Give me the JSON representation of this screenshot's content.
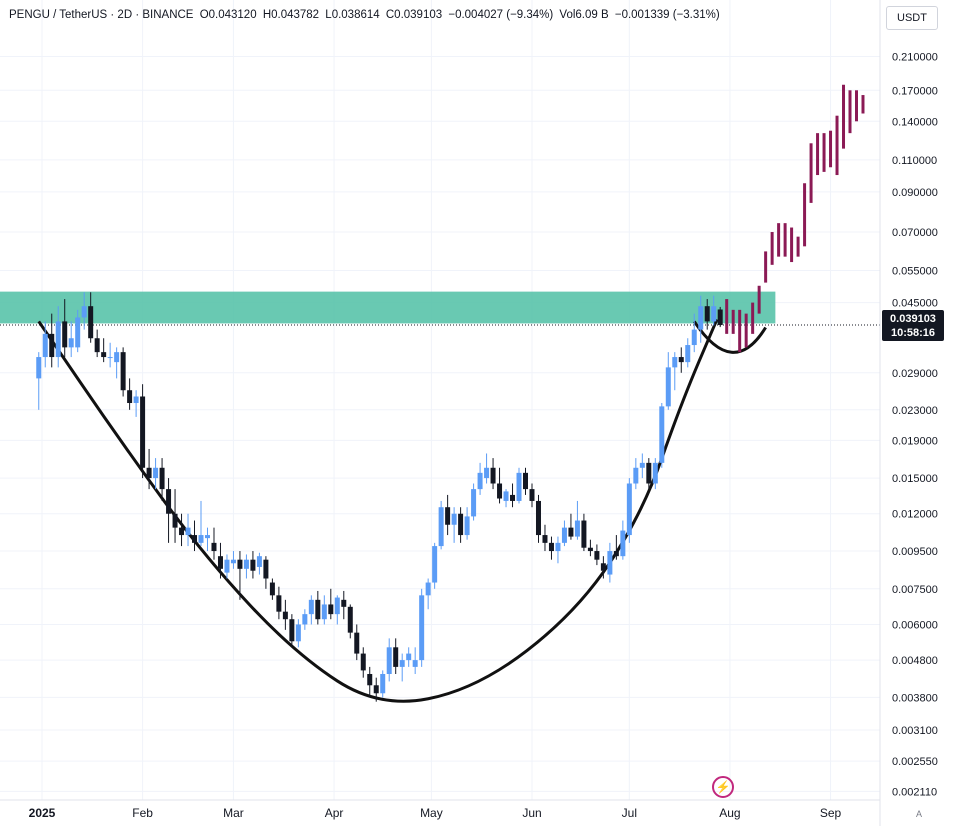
{
  "header": {
    "symbol": "PENGU / TetherUS · 2D · BINANCE",
    "open": "O0.043120",
    "high": "H0.043782",
    "low": "L0.038614",
    "close": "C0.039103",
    "change": "−0.004027 (−9.34%)",
    "volume": "Vol6.09 B",
    "vol_change": "−0.001339 (−3.31%)"
  },
  "currency_label": "USDT",
  "price_tag": {
    "price": "0.039103",
    "countdown": "10:58:16"
  },
  "auto_label": "A",
  "colors": {
    "up": "#5b9cf6",
    "down": "#131722",
    "projection": "#8b1a55",
    "zone": "#4fbfa5",
    "curve": "#111111",
    "grid": "#f0f3fa",
    "axis_text": "#131722"
  },
  "chart_data": {
    "type": "candlestick",
    "scale": "log",
    "ylim": [
      0.00205,
      0.23
    ],
    "y_ticks": [
      "0.210000",
      "0.170000",
      "0.140000",
      "0.110000",
      "0.090000",
      "0.070000",
      "0.055000",
      "0.045000",
      "0.029000",
      "0.023000",
      "0.019000",
      "0.015000",
      "0.012000",
      "0.009500",
      "0.007500",
      "0.006000",
      "0.004800",
      "0.003800",
      "0.003100",
      "0.002550",
      "0.002110"
    ],
    "x_ticks": [
      "2025",
      "Feb",
      "Mar",
      "Apr",
      "May",
      "Jun",
      "Jul",
      "Aug",
      "Sep"
    ],
    "x_tick_dates": [
      "2025-01-01",
      "2025-02-01",
      "2025-03-01",
      "2025-04-01",
      "2025-05-01",
      "2025-06-01",
      "2025-07-01",
      "2025-08-01",
      "2025-09-01"
    ],
    "zone": {
      "low": 0.0395,
      "high": 0.0482,
      "start": "2024-12-31",
      "end": "2025-08-15"
    },
    "last_price": 0.039103,
    "candles": [
      [
        "2024-12-31",
        0.028,
        0.033,
        0.023,
        0.032
      ],
      [
        "2025-01-02",
        0.032,
        0.04,
        0.03,
        0.037
      ],
      [
        "2025-01-04",
        0.037,
        0.042,
        0.03,
        0.032
      ],
      [
        "2025-01-06",
        0.032,
        0.044,
        0.03,
        0.04
      ],
      [
        "2025-01-08",
        0.04,
        0.046,
        0.032,
        0.034
      ],
      [
        "2025-01-10",
        0.034,
        0.04,
        0.032,
        0.036
      ],
      [
        "2025-01-12",
        0.034,
        0.043,
        0.033,
        0.041
      ],
      [
        "2025-01-14",
        0.041,
        0.048,
        0.038,
        0.044
      ],
      [
        "2025-01-16",
        0.044,
        0.048,
        0.035,
        0.036
      ],
      [
        "2025-01-18",
        0.036,
        0.038,
        0.032,
        0.033
      ],
      [
        "2025-01-20",
        0.033,
        0.036,
        0.031,
        0.032
      ],
      [
        "2025-01-22",
        0.032,
        0.035,
        0.03,
        0.032
      ],
      [
        "2025-01-24",
        0.031,
        0.034,
        0.028,
        0.033
      ],
      [
        "2025-01-26",
        0.033,
        0.034,
        0.025,
        0.026
      ],
      [
        "2025-01-28",
        0.026,
        0.028,
        0.023,
        0.024
      ],
      [
        "2025-01-30",
        0.024,
        0.026,
        0.022,
        0.025
      ],
      [
        "2025-02-01",
        0.025,
        0.027,
        0.015,
        0.016
      ],
      [
        "2025-02-03",
        0.016,
        0.018,
        0.014,
        0.015
      ],
      [
        "2025-02-05",
        0.015,
        0.017,
        0.014,
        0.016
      ],
      [
        "2025-02-07",
        0.016,
        0.017,
        0.013,
        0.014
      ],
      [
        "2025-02-09",
        0.014,
        0.015,
        0.01,
        0.012
      ],
      [
        "2025-02-11",
        0.012,
        0.014,
        0.01,
        0.011
      ],
      [
        "2025-02-13",
        0.011,
        0.012,
        0.0098,
        0.0105
      ],
      [
        "2025-02-15",
        0.0105,
        0.012,
        0.0098,
        0.011
      ],
      [
        "2025-02-17",
        0.0105,
        0.0115,
        0.0095,
        0.01
      ],
      [
        "2025-02-19",
        0.01,
        0.013,
        0.0098,
        0.0105
      ],
      [
        "2025-02-21",
        0.0103,
        0.011,
        0.0095,
        0.0105
      ],
      [
        "2025-02-23",
        0.01,
        0.011,
        0.009,
        0.0095
      ],
      [
        "2025-02-25",
        0.0092,
        0.01,
        0.008,
        0.0085
      ],
      [
        "2025-02-27",
        0.0083,
        0.0093,
        0.008,
        0.009
      ],
      [
        "2025-03-01",
        0.0088,
        0.0095,
        0.0085,
        0.009
      ],
      [
        "2025-03-03",
        0.009,
        0.0095,
        0.007,
        0.0085
      ],
      [
        "2025-03-05",
        0.0085,
        0.0093,
        0.008,
        0.009
      ],
      [
        "2025-03-07",
        0.009,
        0.0095,
        0.008,
        0.0084
      ],
      [
        "2025-03-09",
        0.0086,
        0.0094,
        0.0082,
        0.0092
      ],
      [
        "2025-03-11",
        0.009,
        0.0092,
        0.0075,
        0.008
      ],
      [
        "2025-03-13",
        0.0078,
        0.008,
        0.007,
        0.0072
      ],
      [
        "2025-03-15",
        0.0072,
        0.0076,
        0.0062,
        0.0065
      ],
      [
        "2025-03-17",
        0.0065,
        0.007,
        0.0058,
        0.0062
      ],
      [
        "2025-03-19",
        0.0062,
        0.0064,
        0.0052,
        0.0054
      ],
      [
        "2025-03-21",
        0.0054,
        0.0062,
        0.0052,
        0.006
      ],
      [
        "2025-03-23",
        0.006,
        0.0066,
        0.0058,
        0.0064
      ],
      [
        "2025-03-25",
        0.0064,
        0.0072,
        0.006,
        0.007
      ],
      [
        "2025-03-27",
        0.007,
        0.0074,
        0.006,
        0.0062
      ],
      [
        "2025-03-29",
        0.0062,
        0.0072,
        0.006,
        0.0068
      ],
      [
        "2025-03-31",
        0.0068,
        0.0075,
        0.0062,
        0.0064
      ],
      [
        "2025-04-02",
        0.0064,
        0.0072,
        0.006,
        0.0071
      ],
      [
        "2025-04-04",
        0.007,
        0.0074,
        0.0062,
        0.0067
      ],
      [
        "2025-04-06",
        0.0067,
        0.0068,
        0.0055,
        0.0057
      ],
      [
        "2025-04-08",
        0.0057,
        0.006,
        0.0048,
        0.005
      ],
      [
        "2025-04-10",
        0.005,
        0.0052,
        0.0043,
        0.0045
      ],
      [
        "2025-04-12",
        0.0044,
        0.0046,
        0.0038,
        0.0041
      ],
      [
        "2025-04-14",
        0.0041,
        0.0043,
        0.0037,
        0.0039
      ],
      [
        "2025-04-16",
        0.0039,
        0.0045,
        0.0038,
        0.0044
      ],
      [
        "2025-04-18",
        0.0044,
        0.0055,
        0.0042,
        0.0052
      ],
      [
        "2025-04-20",
        0.0052,
        0.0055,
        0.0044,
        0.0046
      ],
      [
        "2025-04-22",
        0.0046,
        0.005,
        0.0042,
        0.0048
      ],
      [
        "2025-04-24",
        0.0048,
        0.0052,
        0.0046,
        0.005
      ],
      [
        "2025-04-26",
        0.0046,
        0.0052,
        0.0044,
        0.0048
      ],
      [
        "2025-04-28",
        0.0048,
        0.0075,
        0.0046,
        0.0072
      ],
      [
        "2025-04-30",
        0.0072,
        0.008,
        0.0066,
        0.0078
      ],
      [
        "2025-05-02",
        0.0078,
        0.01,
        0.0075,
        0.0098
      ],
      [
        "2025-05-04",
        0.0098,
        0.013,
        0.0096,
        0.0125
      ],
      [
        "2025-05-06",
        0.0125,
        0.0135,
        0.0105,
        0.0112
      ],
      [
        "2025-05-08",
        0.0112,
        0.0125,
        0.01,
        0.012
      ],
      [
        "2025-05-10",
        0.012,
        0.0125,
        0.01,
        0.0105
      ],
      [
        "2025-05-12",
        0.0105,
        0.0125,
        0.0102,
        0.0118
      ],
      [
        "2025-05-14",
        0.0118,
        0.0145,
        0.0115,
        0.014
      ],
      [
        "2025-05-16",
        0.014,
        0.0165,
        0.0135,
        0.0155
      ],
      [
        "2025-05-18",
        0.015,
        0.0175,
        0.0145,
        0.016
      ],
      [
        "2025-05-20",
        0.016,
        0.017,
        0.014,
        0.0145
      ],
      [
        "2025-05-22",
        0.0145,
        0.016,
        0.0128,
        0.0132
      ],
      [
        "2025-05-24",
        0.013,
        0.014,
        0.0125,
        0.0138
      ],
      [
        "2025-05-26",
        0.0135,
        0.0145,
        0.0125,
        0.013
      ],
      [
        "2025-05-28",
        0.013,
        0.016,
        0.0128,
        0.0155
      ],
      [
        "2025-05-30",
        0.0155,
        0.016,
        0.0135,
        0.014
      ],
      [
        "2025-06-01",
        0.014,
        0.0145,
        0.0125,
        0.013
      ],
      [
        "2025-06-03",
        0.013,
        0.0135,
        0.01,
        0.0105
      ],
      [
        "2025-06-05",
        0.0105,
        0.0112,
        0.0095,
        0.01
      ],
      [
        "2025-06-07",
        0.01,
        0.0104,
        0.009,
        0.0095
      ],
      [
        "2025-06-09",
        0.0095,
        0.0104,
        0.0088,
        0.01
      ],
      [
        "2025-06-11",
        0.01,
        0.0115,
        0.0098,
        0.011
      ],
      [
        "2025-06-13",
        0.011,
        0.012,
        0.0102,
        0.0104
      ],
      [
        "2025-06-15",
        0.0104,
        0.013,
        0.0102,
        0.0115
      ],
      [
        "2025-06-17",
        0.0115,
        0.012,
        0.0095,
        0.0097
      ],
      [
        "2025-06-19",
        0.0097,
        0.0102,
        0.0092,
        0.0095
      ],
      [
        "2025-06-21",
        0.0095,
        0.0099,
        0.0087,
        0.009
      ],
      [
        "2025-06-23",
        0.0088,
        0.0092,
        0.008,
        0.0084
      ],
      [
        "2025-06-25",
        0.0082,
        0.01,
        0.0078,
        0.0095
      ],
      [
        "2025-06-27",
        0.0095,
        0.0105,
        0.009,
        0.0092
      ],
      [
        "2025-06-29",
        0.0092,
        0.0115,
        0.009,
        0.0108
      ],
      [
        "2025-07-01",
        0.0105,
        0.015,
        0.01,
        0.0145
      ],
      [
        "2025-07-03",
        0.0145,
        0.017,
        0.014,
        0.016
      ],
      [
        "2025-07-05",
        0.016,
        0.0175,
        0.015,
        0.0165
      ],
      [
        "2025-07-07",
        0.0165,
        0.017,
        0.014,
        0.0145
      ],
      [
        "2025-07-09",
        0.0145,
        0.017,
        0.014,
        0.0165
      ],
      [
        "2025-07-11",
        0.0165,
        0.024,
        0.016,
        0.0235
      ],
      [
        "2025-07-13",
        0.0235,
        0.033,
        0.023,
        0.03
      ],
      [
        "2025-07-15",
        0.03,
        0.033,
        0.026,
        0.032
      ],
      [
        "2025-07-17",
        0.032,
        0.034,
        0.029,
        0.031
      ],
      [
        "2025-07-19",
        0.031,
        0.036,
        0.03,
        0.0345
      ],
      [
        "2025-07-21",
        0.0345,
        0.042,
        0.033,
        0.038
      ],
      [
        "2025-07-23",
        0.038,
        0.047,
        0.035,
        0.044
      ],
      [
        "2025-07-25",
        0.044,
        0.046,
        0.038,
        0.04
      ],
      [
        "2025-07-27",
        0.04,
        0.047,
        0.039,
        0.044
      ],
      [
        "2025-07-29",
        0.0431,
        0.0438,
        0.0386,
        0.0391
      ]
    ],
    "projection": [
      [
        "2025-07-31",
        0.037,
        0.046
      ],
      [
        "2025-08-02",
        0.037,
        0.043
      ],
      [
        "2025-08-04",
        0.033,
        0.043
      ],
      [
        "2025-08-06",
        0.034,
        0.042
      ],
      [
        "2025-08-08",
        0.037,
        0.045
      ],
      [
        "2025-08-10",
        0.042,
        0.05
      ],
      [
        "2025-08-12",
        0.051,
        0.062
      ],
      [
        "2025-08-14",
        0.057,
        0.07
      ],
      [
        "2025-08-16",
        0.06,
        0.074
      ],
      [
        "2025-08-18",
        0.06,
        0.074
      ],
      [
        "2025-08-20",
        0.058,
        0.072
      ],
      [
        "2025-08-22",
        0.06,
        0.068
      ],
      [
        "2025-08-24",
        0.064,
        0.095
      ],
      [
        "2025-08-26",
        0.084,
        0.122
      ],
      [
        "2025-08-28",
        0.1,
        0.13
      ],
      [
        "2025-08-30",
        0.102,
        0.13
      ],
      [
        "2025-09-01",
        0.105,
        0.132
      ],
      [
        "2025-09-03",
        0.1,
        0.145
      ],
      [
        "2025-09-05",
        0.118,
        0.176
      ],
      [
        "2025-09-07",
        0.13,
        0.17
      ],
      [
        "2025-09-09",
        0.14,
        0.17
      ],
      [
        "2025-09-11",
        0.147,
        0.165
      ]
    ]
  }
}
